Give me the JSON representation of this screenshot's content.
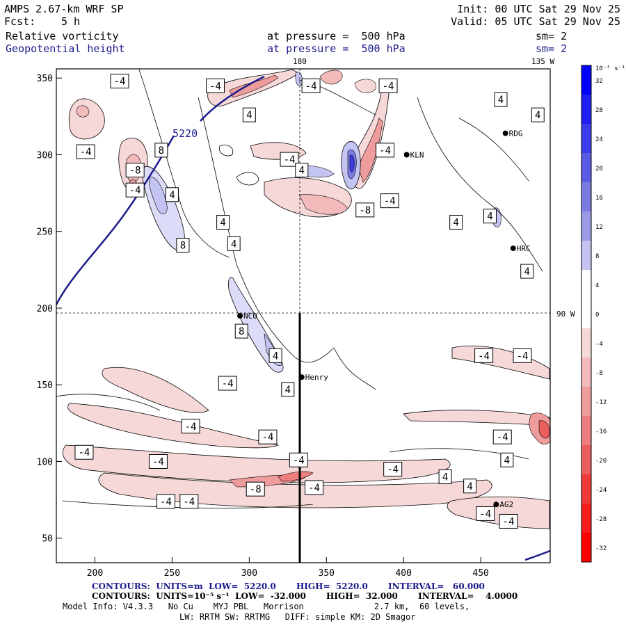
{
  "header": {
    "model": "AMPS 2.67-km WRF SP",
    "fcst_label": "Fcst:",
    "fcst_value": "5 h",
    "init": "Init: 00 UTC Sat 29 Nov 25",
    "valid": "Valid: 05 UTC Sat 29 Nov 25",
    "field1": {
      "name": "Relative vorticity",
      "level": "at pressure =  500 hPa",
      "smooth": "sm= 2"
    },
    "field2": {
      "name": "Geopotential height",
      "level": "at pressure =  500 hPa",
      "smooth": "sm= 2"
    }
  },
  "map": {
    "meridian_180": "180",
    "meridian_135w": "135 W",
    "meridian_90w": "90 W",
    "x_ticks": [
      "200",
      "250",
      "300",
      "350",
      "400",
      "450"
    ],
    "y_ticks": [
      "350",
      "300",
      "250",
      "200",
      "150",
      "100",
      "50"
    ],
    "x_range": [
      175,
      495
    ],
    "y_range": [
      34,
      356
    ],
    "height_contour_label": "5220",
    "stations": [
      {
        "name": "KLN",
        "x": 402,
        "y": 300
      },
      {
        "name": "RDG",
        "x": 466,
        "y": 314
      },
      {
        "name": "HRC",
        "x": 471,
        "y": 239
      },
      {
        "name": "NCO",
        "x": 294,
        "y": 195
      },
      {
        "name": "Henry",
        "x": 334,
        "y": 155
      },
      {
        "name": "AG2",
        "x": 460,
        "y": 72
      }
    ],
    "vorticity_labels": [
      {
        "text": "-4",
        "x": 216,
        "y": 348
      },
      {
        "text": "-4",
        "x": 278,
        "y": 345
      },
      {
        "text": "-4",
        "x": 340,
        "y": 345
      },
      {
        "text": "-4",
        "x": 390,
        "y": 345
      },
      {
        "text": "4",
        "x": 463,
        "y": 336
      },
      {
        "text": "4",
        "x": 487,
        "y": 326
      },
      {
        "text": "4",
        "x": 300,
        "y": 326
      },
      {
        "text": "-4",
        "x": 194,
        "y": 302
      },
      {
        "text": "8",
        "x": 243,
        "y": 303
      },
      {
        "text": "-8",
        "x": 226,
        "y": 290
      },
      {
        "text": "-4",
        "x": 326,
        "y": 297
      },
      {
        "text": "4",
        "x": 334,
        "y": 290
      },
      {
        "text": "-4",
        "x": 388,
        "y": 303
      },
      {
        "text": "-4",
        "x": 226,
        "y": 277
      },
      {
        "text": "4",
        "x": 250,
        "y": 274
      },
      {
        "text": "-4",
        "x": 391,
        "y": 270
      },
      {
        "text": "-8",
        "x": 375,
        "y": 264
      },
      {
        "text": "4",
        "x": 456,
        "y": 260
      },
      {
        "text": "4",
        "x": 434,
        "y": 256
      },
      {
        "text": "4",
        "x": 283,
        "y": 256
      },
      {
        "text": "8",
        "x": 257,
        "y": 241
      },
      {
        "text": "4",
        "x": 290,
        "y": 242
      },
      {
        "text": "4",
        "x": 480,
        "y": 224
      },
      {
        "text": "8",
        "x": 295,
        "y": 185
      },
      {
        "text": "4",
        "x": 317,
        "y": 169
      },
      {
        "text": "-4",
        "x": 452,
        "y": 169
      },
      {
        "text": "-4",
        "x": 477,
        "y": 169
      },
      {
        "text": "-4",
        "x": 286,
        "y": 151
      },
      {
        "text": "4",
        "x": 325,
        "y": 147
      },
      {
        "text": "-4",
        "x": 262,
        "y": 123
      },
      {
        "text": "-4",
        "x": 312,
        "y": 116
      },
      {
        "text": "-4",
        "x": 464,
        "y": 116
      },
      {
        "text": "-4",
        "x": 193,
        "y": 106
      },
      {
        "text": "-4",
        "x": 241,
        "y": 100
      },
      {
        "text": "-4",
        "x": 332,
        "y": 101
      },
      {
        "text": "4",
        "x": 467,
        "y": 101
      },
      {
        "text": "-4",
        "x": 393,
        "y": 95
      },
      {
        "text": "4",
        "x": 427,
        "y": 90
      },
      {
        "text": "4",
        "x": 443,
        "y": 84
      },
      {
        "text": "-8",
        "x": 304,
        "y": 82
      },
      {
        "text": "-4",
        "x": 342,
        "y": 83
      },
      {
        "text": "-4",
        "x": 246,
        "y": 74
      },
      {
        "text": "-4",
        "x": 261,
        "y": 74
      },
      {
        "text": "-4",
        "x": 453,
        "y": 66
      },
      {
        "text": "-4",
        "x": 468,
        "y": 61
      }
    ]
  },
  "colorbar": {
    "unit_label": "10⁻⁵ s⁻¹",
    "ticks": [
      "32",
      "28",
      "24",
      "20",
      "16",
      "12",
      "8",
      "4",
      "0",
      "-4",
      "-8",
      "-12",
      "-16",
      "-20",
      "-24",
      "-28",
      "-32"
    ],
    "colors": [
      "#0000ff",
      "#1f1ff4",
      "#3c3cec",
      "#5a5ae4",
      "#7a7ae0",
      "#9a9ae8",
      "#c4c4f2",
      "#ffffff",
      "#ffffff",
      "#f6d8d8",
      "#f2baba",
      "#ee9c9c",
      "#ec7e7e",
      "#ec5e5e",
      "#f03a3a",
      "#f81c1c",
      "#ff0000"
    ]
  },
  "footer": {
    "line1": "CONTOURS:  UNITS=m  LOW=  5220.0       HIGH=  5220.0       INTERVAL=   60.000",
    "line2": "CONTOURS:  UNITS=10⁻⁵ s⁻¹  LOW=  -32.000       HIGH=  32.000       INTERVAL=    4.0000",
    "line3": "Model Info: V4.3.3   No Cu    MYJ PBL   Morrison              2.7 km,  60 levels,",
    "line4": "LW: RRTM SW: RRTMG   DIFF: simple KM: 2D Smagor"
  }
}
